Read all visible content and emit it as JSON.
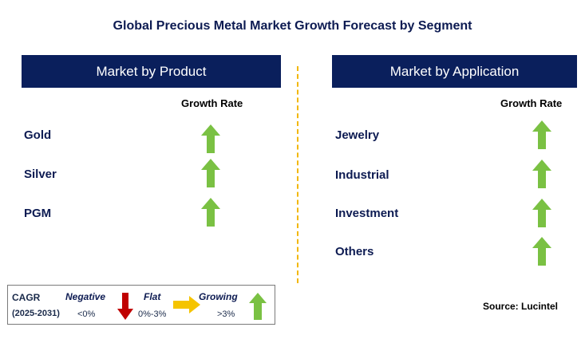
{
  "title": "Global Precious Metal Market Growth Forecast by Segment",
  "product_panel": {
    "header": "Market by Product",
    "growth_rate_label": "Growth Rate",
    "items": [
      {
        "label": "Gold",
        "trend": "growing"
      },
      {
        "label": "Silver",
        "trend": "growing"
      },
      {
        "label": "PGM",
        "trend": "growing"
      }
    ]
  },
  "application_panel": {
    "header": "Market by Application",
    "growth_rate_label": "Growth Rate",
    "items": [
      {
        "label": "Jewelry",
        "trend": "growing"
      },
      {
        "label": "Industrial",
        "trend": "growing"
      },
      {
        "label": "Investment",
        "trend": "growing"
      },
      {
        "label": "Others",
        "trend": "growing"
      }
    ]
  },
  "legend": {
    "cagr_label": "CAGR",
    "years_label": "(2025-2031)",
    "negative": {
      "label": "Negative",
      "range": "<0%",
      "color": "#c00000",
      "icon": "down-arrow-icon"
    },
    "flat": {
      "label": "Flat",
      "range": "0%-3%",
      "color": "#f5c400",
      "icon": "right-arrow-icon"
    },
    "growing": {
      "label": "Growing",
      "range": ">3%",
      "color": "#7ac143",
      "icon": "up-arrow-icon"
    }
  },
  "source": "Source: Lucintel",
  "colors": {
    "header_bg": "#0a1f5c",
    "divider": "#f2b705",
    "growth_arrow": "#7ac143"
  }
}
